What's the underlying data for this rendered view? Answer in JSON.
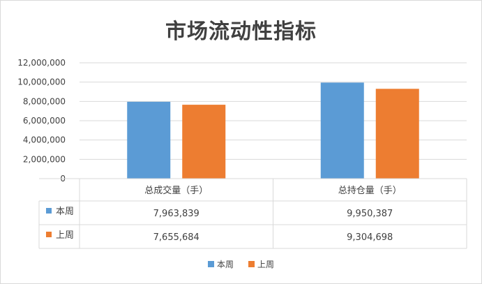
{
  "chart_data": {
    "type": "bar",
    "title": "市场流动性指标",
    "categories": [
      "总成交量（手）",
      "总持仓量（手）"
    ],
    "series": [
      {
        "name": "本周",
        "color": "#5b9bd5",
        "values": [
          7963839,
          9950387
        ],
        "labels": [
          "7,963,839",
          "9,950,387"
        ]
      },
      {
        "name": "上周",
        "color": "#ed7d31",
        "values": [
          7655684,
          9304698
        ],
        "labels": [
          "7,655,684",
          "9,304,698"
        ]
      }
    ],
    "ylim": [
      0,
      12000000
    ],
    "yticks": [
      0,
      2000000,
      4000000,
      6000000,
      8000000,
      10000000,
      12000000
    ],
    "ytick_labels": [
      "0",
      "2,000,000",
      "4,000,000",
      "6,000,000",
      "8,000,000",
      "10,000,000",
      "12,000,000"
    ],
    "grid": true,
    "data_table": true,
    "legend_position": "bottom"
  }
}
